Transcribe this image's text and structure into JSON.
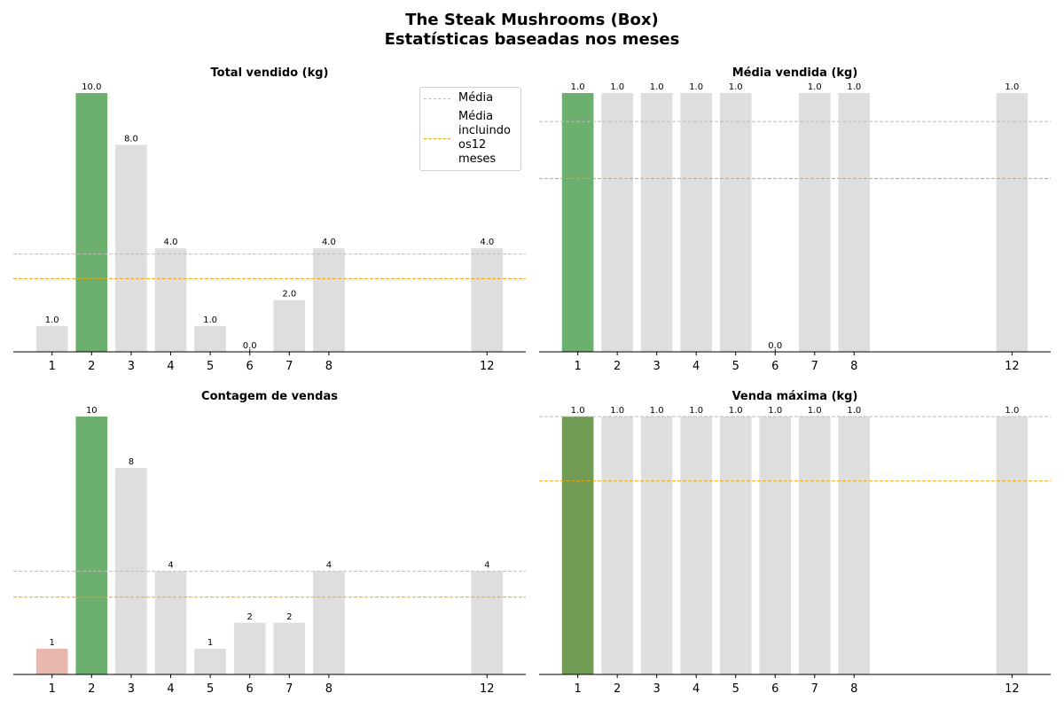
{
  "figure": {
    "title_line1": "The Steak Mushrooms (Box)",
    "title_line2": "Estatísticas baseadas nos meses"
  },
  "legend": {
    "mean_label": "Média",
    "mean_all_label": "Média\nincluindo\nos12\nmeses"
  },
  "colors": {
    "bar_default": "#dedede",
    "bar_max": "#6daf6f",
    "bar_max_alt": "#729b55",
    "bar_min": "#e8b8ae",
    "mean_line": "#bdbdbd",
    "mean_all_line": "#f0a500"
  },
  "chart_data": [
    {
      "type": "bar",
      "title": "Total vendido (kg)",
      "categories": [
        "1",
        "2",
        "3",
        "4",
        "5",
        "6",
        "7",
        "8",
        "12"
      ],
      "x": [
        1,
        2,
        3,
        4,
        5,
        6,
        7,
        8,
        12
      ],
      "values": [
        1.0,
        10.0,
        8.0,
        4.0,
        1.0,
        0.0,
        2.0,
        4.0,
        4.0
      ],
      "labels": [
        "1.0",
        "10.0",
        "8.0",
        "4.0",
        "1.0",
        "0.0",
        "2.0",
        "4.0",
        "4.0"
      ],
      "highlight": [
        "default",
        "max",
        "default",
        "default",
        "default",
        "default",
        "default",
        "default",
        "default"
      ],
      "mean": 3.78,
      "mean_all_months": 2.83,
      "ylim": [
        0,
        10
      ],
      "legend": "top-right"
    },
    {
      "type": "bar",
      "title": "Média vendida (kg)",
      "categories": [
        "1",
        "2",
        "3",
        "4",
        "5",
        "6",
        "7",
        "8",
        "12"
      ],
      "x": [
        1,
        2,
        3,
        4,
        5,
        6,
        7,
        8,
        12
      ],
      "values": [
        1.0,
        1.0,
        1.0,
        1.0,
        1.0,
        0.0,
        1.0,
        1.0,
        1.0
      ],
      "labels": [
        "1.0",
        "1.0",
        "1.0",
        "1.0",
        "1.0",
        "0.0",
        "1.0",
        "1.0",
        "1.0"
      ],
      "highlight": [
        "max",
        "default",
        "default",
        "default",
        "default",
        "default",
        "default",
        "default",
        "default"
      ],
      "mean": 0.89,
      "mean_all_months": 0.67,
      "ylim": [
        0,
        1
      ]
    },
    {
      "type": "bar",
      "title": "Contagem de vendas",
      "categories": [
        "1",
        "2",
        "3",
        "4",
        "5",
        "6",
        "7",
        "8",
        "12"
      ],
      "x": [
        1,
        2,
        3,
        4,
        5,
        6,
        7,
        8,
        12
      ],
      "values": [
        1,
        10,
        8,
        4,
        1,
        2,
        2,
        4,
        4
      ],
      "labels": [
        "1",
        "10",
        "8",
        "4",
        "1",
        "2",
        "2",
        "4",
        "4"
      ],
      "highlight": [
        "min",
        "max",
        "default",
        "default",
        "default",
        "default",
        "default",
        "default",
        "default"
      ],
      "mean": 4.0,
      "mean_all_months": 3.0,
      "ylim": [
        0,
        10
      ]
    },
    {
      "type": "bar",
      "title": "Venda máxima (kg)",
      "categories": [
        "1",
        "2",
        "3",
        "4",
        "5",
        "6",
        "7",
        "8",
        "12"
      ],
      "x": [
        1,
        2,
        3,
        4,
        5,
        6,
        7,
        8,
        12
      ],
      "values": [
        1.0,
        1.0,
        1.0,
        1.0,
        1.0,
        1.0,
        1.0,
        1.0,
        1.0
      ],
      "labels": [
        "1.0",
        "1.0",
        "1.0",
        "1.0",
        "1.0",
        "1.0",
        "1.0",
        "1.0",
        "1.0"
      ],
      "highlight": [
        "max_alt",
        "default",
        "default",
        "default",
        "default",
        "default",
        "default",
        "default",
        "default"
      ],
      "mean": 1.0,
      "mean_all_months": 0.75,
      "ylim": [
        0,
        1
      ]
    }
  ]
}
